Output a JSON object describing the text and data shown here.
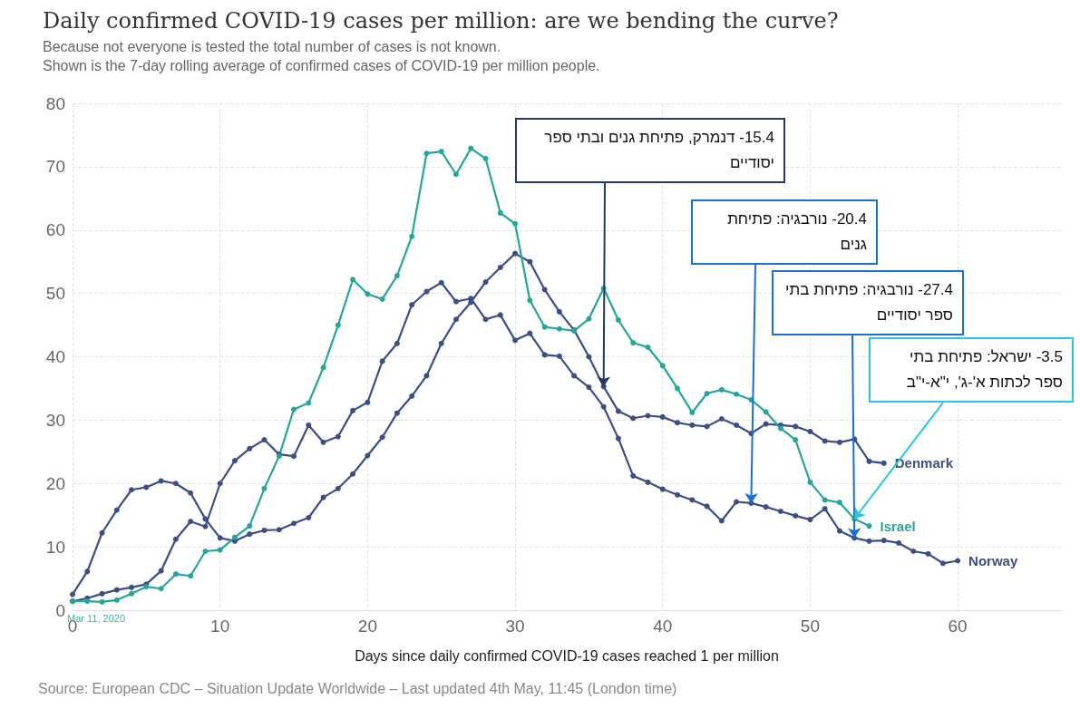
{
  "chart_data": {
    "type": "line",
    "title": "Daily confirmed COVID-19 cases per million: are we bending the curve?",
    "subtitle": "Because not everyone is tested the total number of cases is not known.\nShown is the 7-day rolling average of confirmed cases of COVID-19 per million people.",
    "xlabel": "Days since daily confirmed COVID-19 cases reached 1 per million",
    "xlim": [
      0,
      67
    ],
    "xticks": [
      0,
      10,
      20,
      30,
      40,
      50,
      60
    ],
    "ylim": [
      0,
      80
    ],
    "yticks": [
      0,
      10,
      20,
      30,
      40,
      50,
      60,
      70,
      80
    ],
    "grid": true,
    "marker": "circle",
    "line_style": "solid",
    "series": [
      {
        "name": "Denmark",
        "color": "#3b4f86",
        "x": [
          0,
          1,
          2,
          3,
          4,
          5,
          6,
          7,
          8,
          9,
          10,
          11,
          12,
          13,
          14,
          15,
          16,
          17,
          18,
          19,
          20,
          21,
          22,
          23,
          24,
          25,
          26,
          27,
          28,
          29,
          30,
          31,
          32,
          33,
          34,
          35,
          36,
          37,
          38,
          39,
          40,
          41,
          42,
          43,
          44,
          45,
          46,
          47,
          48,
          49,
          50,
          51,
          52,
          53,
          54,
          55
        ],
        "values": [
          2.5,
          6.1,
          12.2,
          15.8,
          19.0,
          19.4,
          20.4,
          20.0,
          18.5,
          14.4,
          11.4,
          10.9,
          12.0,
          12.6,
          12.7,
          13.7,
          14.6,
          17.8,
          19.2,
          21.5,
          24.4,
          27.3,
          31.1,
          33.8,
          37.0,
          42.1,
          45.9,
          48.6,
          51.8,
          54.1,
          56.3,
          55.0,
          50.6,
          47.1,
          44.2,
          40.0,
          35.3,
          31.4,
          30.3,
          30.7,
          30.5,
          29.6,
          29.2,
          29.0,
          30.2,
          29.2,
          27.9,
          29.4,
          29.2,
          29.0,
          28.2,
          26.7,
          26.5,
          27.0,
          23.5,
          23.2
        ]
      },
      {
        "name": "Norway",
        "color": "#3b4f86",
        "x": [
          0,
          1,
          2,
          3,
          4,
          5,
          6,
          7,
          8,
          9,
          10,
          11,
          12,
          13,
          14,
          15,
          16,
          17,
          18,
          19,
          20,
          21,
          22,
          23,
          24,
          25,
          26,
          27,
          28,
          29,
          30,
          31,
          32,
          33,
          34,
          35,
          36,
          37,
          38,
          39,
          40,
          41,
          42,
          43,
          44,
          45,
          46,
          47,
          48,
          49,
          50,
          51,
          52,
          53,
          54,
          55,
          56,
          57,
          58,
          59,
          60
        ],
        "values": [
          1.4,
          1.9,
          2.6,
          3.2,
          3.6,
          4.1,
          6.2,
          11.2,
          14.0,
          13.2,
          20.0,
          23.6,
          25.5,
          26.9,
          24.6,
          24.3,
          29.2,
          26.5,
          27.4,
          31.5,
          32.8,
          39.3,
          42.1,
          48.2,
          50.3,
          51.7,
          48.7,
          49.2,
          45.9,
          46.6,
          42.6,
          43.7,
          40.3,
          40.1,
          37.0,
          35.2,
          32.1,
          27.1,
          21.2,
          20.2,
          19.1,
          18.2,
          17.4,
          16.4,
          14.1,
          17.1,
          16.9,
          16.3,
          15.6,
          14.9,
          14.3,
          16.0,
          12.5,
          11.4,
          10.9,
          11.0,
          10.6,
          9.3,
          8.9,
          7.4,
          7.8
        ]
      },
      {
        "name": "Israel",
        "color": "#26a69a",
        "x": [
          0,
          1,
          2,
          3,
          4,
          5,
          6,
          7,
          8,
          9,
          10,
          11,
          12,
          13,
          14,
          15,
          16,
          17,
          18,
          19,
          20,
          21,
          22,
          23,
          24,
          25,
          26,
          27,
          28,
          29,
          30,
          31,
          32,
          33,
          34,
          35,
          36,
          37,
          38,
          39,
          40,
          41,
          42,
          43,
          44,
          45,
          46,
          47,
          48,
          49,
          50,
          51,
          52,
          53,
          54
        ],
        "values": [
          1.4,
          1.4,
          1.3,
          1.6,
          2.6,
          3.7,
          3.4,
          5.7,
          5.4,
          9.3,
          9.5,
          11.5,
          13.3,
          19.2,
          24.3,
          31.7,
          32.7,
          38.3,
          45.0,
          52.2,
          49.9,
          49.1,
          52.8,
          59.0,
          72.1,
          72.4,
          68.8,
          72.9,
          71.3,
          62.7,
          61.0,
          48.9,
          44.7,
          44.4,
          44.1,
          46.0,
          50.8,
          45.8,
          42.2,
          41.5,
          38.6,
          35.0,
          31.2,
          34.2,
          34.8,
          34.1,
          33.2,
          31.3,
          28.7,
          26.9,
          20.2,
          17.4,
          17.0,
          14.4,
          13.3
        ]
      }
    ],
    "annotations": [
      {
        "text": "15.4- דנמרק, פתיחת גנים ובתי ספר יסודיים",
        "x": 36,
        "y": 35.3
      },
      {
        "text": "20.4- נורבגיה: פתיחת גנים",
        "x": 46,
        "y": 16.9
      },
      {
        "text": "27.4- נורבגיה: פתיחת בתי ספר יסודיים",
        "x": 53,
        "y": 11.4
      },
      {
        "text": "3.5- ישראל: פתיחת בתי ספר לכתות א'-ג', י\"א-י\"ב",
        "x": 53,
        "y": 14.4
      },
      "Mar 11, 2020",
      "Source: European CDC – Situation Update Worldwide – Last updated 4th May, 11:45 (London time)"
    ]
  }
}
